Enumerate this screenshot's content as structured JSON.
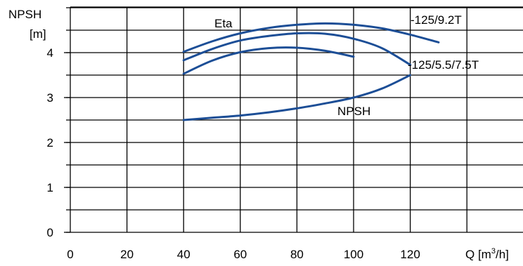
{
  "chart_data": {
    "type": "line",
    "xlabel_main": "Q [m",
    "xlabel_sup": "3",
    "xlabel_tail": "/h]",
    "ylabel_line1": "NPSH",
    "ylabel_line2": "[m]",
    "xlim": [
      0,
      160
    ],
    "ylim": [
      0,
      5
    ],
    "x_ticks": [
      0,
      20,
      40,
      60,
      80,
      100,
      120
    ],
    "x_tick_labels": [
      "0",
      "20",
      "40",
      "60",
      "80",
      "100",
      "120"
    ],
    "y_ticks": [
      0,
      1,
      2,
      3,
      4
    ],
    "y_tick_labels": [
      "0",
      "1",
      "2",
      "3",
      "4"
    ],
    "grid": true,
    "annotations": {
      "eta": "Eta",
      "npsh": "NPSH",
      "impeller_large": "-125/9.2T",
      "impeller_small": "-125/5.5/7.5T"
    },
    "series": [
      {
        "name": "NPSH",
        "x": [
          40,
          50,
          60,
          70,
          80,
          90,
          100,
          110,
          120
        ],
        "y": [
          2.5,
          2.55,
          2.6,
          2.67,
          2.76,
          2.87,
          3.0,
          3.2,
          3.5
        ]
      },
      {
        "x": [
          40,
          50,
          60,
          70,
          80,
          90,
          100,
          110,
          120,
          130
        ],
        "y": [
          4.02,
          4.25,
          4.43,
          4.55,
          4.62,
          4.65,
          4.62,
          4.54,
          4.4,
          4.23
        ]
      },
      {
        "x": [
          40,
          50,
          60,
          70,
          80,
          90,
          100,
          110,
          120
        ],
        "y": [
          3.83,
          4.08,
          4.27,
          4.37,
          4.43,
          4.42,
          4.31,
          4.1,
          3.73
        ]
      },
      {
        "x": [
          40,
          50,
          60,
          70,
          80,
          90,
          100
        ],
        "y": [
          3.53,
          3.82,
          4.01,
          4.1,
          4.11,
          4.04,
          3.91
        ]
      }
    ]
  }
}
